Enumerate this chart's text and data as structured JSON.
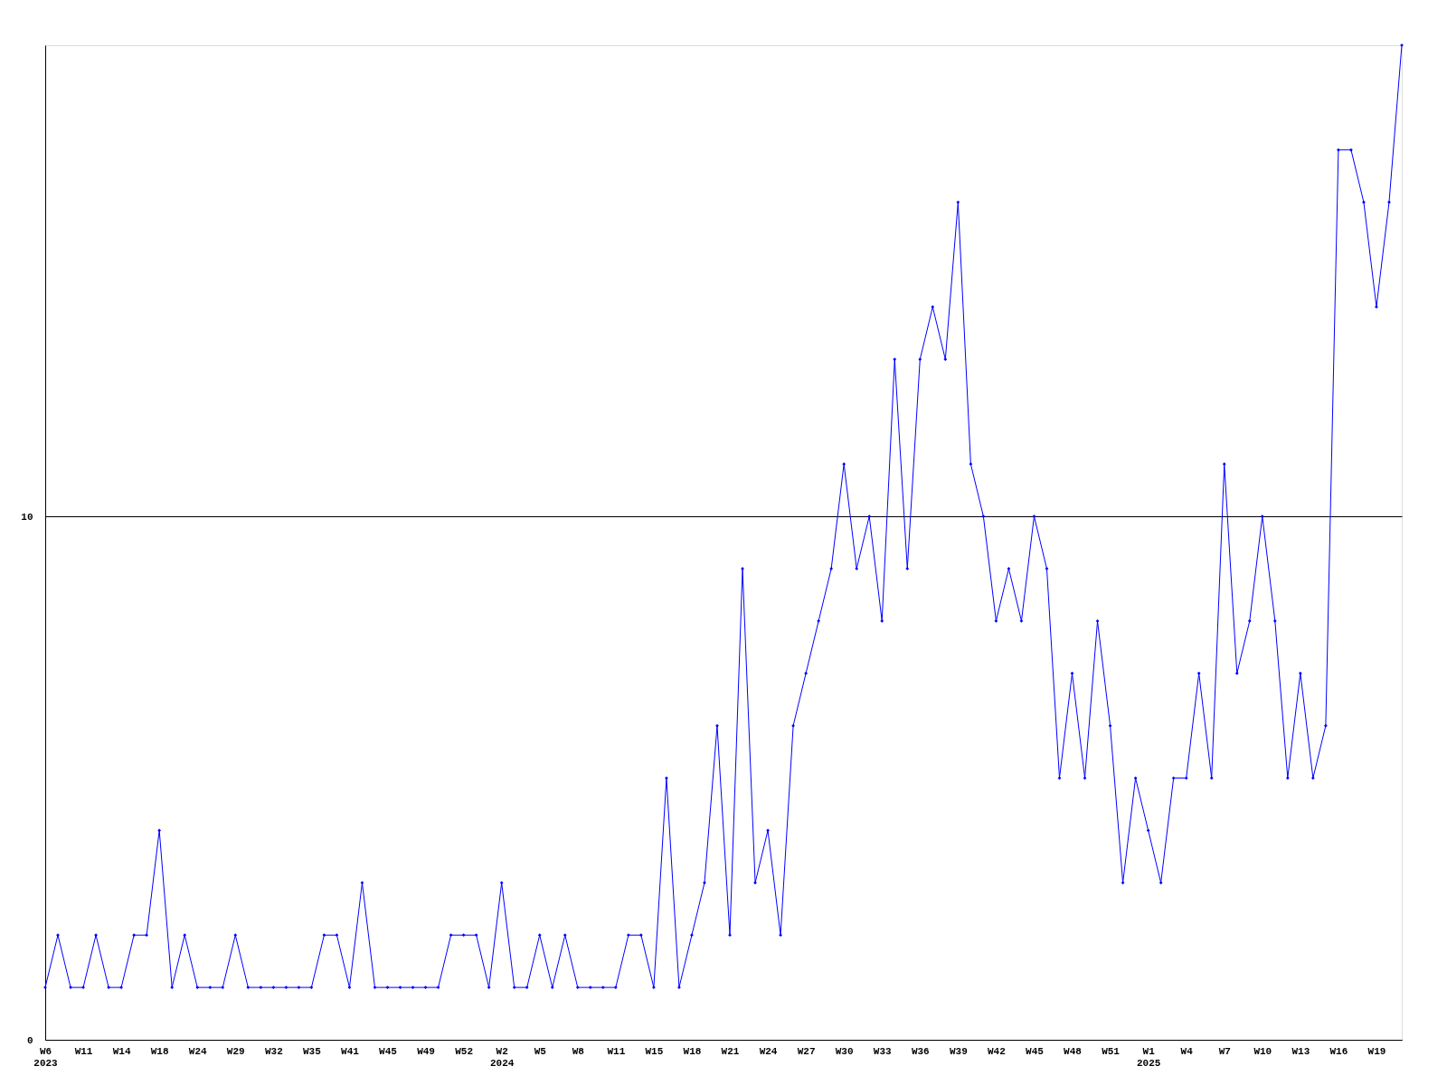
{
  "chart_data": {
    "type": "line",
    "categories": [
      "W6\n2023",
      null,
      null,
      "W11",
      null,
      null,
      "W14",
      null,
      null,
      "W18",
      null,
      null,
      "W24",
      null,
      null,
      "W29",
      null,
      null,
      "W32",
      null,
      null,
      "W35",
      null,
      null,
      "W41",
      null,
      null,
      "W45",
      null,
      null,
      "W49",
      null,
      null,
      "W52",
      null,
      null,
      "W2\n2024",
      null,
      null,
      "W5",
      null,
      null,
      "W8",
      null,
      null,
      "W11",
      null,
      null,
      "W15",
      null,
      null,
      "W18",
      null,
      null,
      "W21",
      null,
      null,
      "W24",
      null,
      null,
      "W27",
      null,
      null,
      "W30",
      null,
      null,
      "W33",
      null,
      null,
      "W36",
      null,
      null,
      "W39",
      null,
      null,
      "W42",
      null,
      null,
      "W45",
      null,
      null,
      "W48",
      null,
      null,
      "W51",
      null,
      null,
      "W1\n2025",
      null,
      null,
      "W4",
      null,
      null,
      "W7",
      null,
      null,
      "W10",
      null,
      null,
      "W13",
      null,
      null,
      "W16",
      null,
      null,
      "W19",
      null,
      null
    ],
    "series": [
      {
        "color": "#0000ff",
        "values": [
          1,
          2,
          1,
          1,
          2,
          1,
          1,
          2,
          2,
          4,
          1,
          2,
          1,
          1,
          1,
          2,
          1,
          1,
          1,
          1,
          1,
          1,
          2,
          2,
          1,
          3,
          1,
          1,
          1,
          1,
          1,
          1,
          2,
          2,
          2,
          1,
          3,
          1,
          1,
          2,
          1,
          2,
          1,
          1,
          1,
          1,
          2,
          2,
          1,
          5,
          1,
          2,
          3,
          6,
          2,
          9,
          3,
          4,
          2,
          6,
          7,
          8,
          9,
          11,
          9,
          10,
          8,
          13,
          9,
          13,
          14,
          13,
          16,
          11,
          10,
          8,
          9,
          8,
          10,
          9,
          5,
          7,
          5,
          8,
          6,
          3,
          5,
          4,
          3,
          5,
          5,
          7,
          5,
          11,
          7,
          8,
          10,
          8,
          5,
          7,
          5,
          6,
          17,
          17,
          16,
          14,
          16,
          19
        ]
      }
    ],
    "ylim": [
      0,
      19
    ],
    "yticks": [
      0,
      10
    ],
    "grid": "y",
    "marker": "diamond",
    "line_style": "solid"
  }
}
